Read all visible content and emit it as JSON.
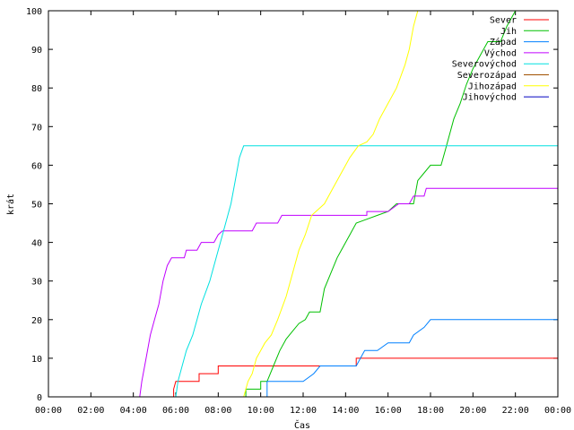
{
  "chart_data": {
    "type": "line",
    "step": true,
    "xlabel": "Čas",
    "ylabel": "krát",
    "xlim": [
      0,
      24
    ],
    "ylim": [
      0,
      100
    ],
    "x_ticks": [
      {
        "v": 0,
        "label": "00:00"
      },
      {
        "v": 2,
        "label": "02:00"
      },
      {
        "v": 4,
        "label": "04:00"
      },
      {
        "v": 6,
        "label": "06:00"
      },
      {
        "v": 8,
        "label": "08:00"
      },
      {
        "v": 10,
        "label": "10:00"
      },
      {
        "v": 12,
        "label": "12:00"
      },
      {
        "v": 14,
        "label": "14:00"
      },
      {
        "v": 16,
        "label": "16:00"
      },
      {
        "v": 18,
        "label": "18:00"
      },
      {
        "v": 20,
        "label": "20:00"
      },
      {
        "v": 22,
        "label": "22:00"
      },
      {
        "v": 24,
        "label": "00:00"
      }
    ],
    "y_ticks": [
      {
        "v": 0,
        "label": "0"
      },
      {
        "v": 10,
        "label": "10"
      },
      {
        "v": 20,
        "label": "20"
      },
      {
        "v": 30,
        "label": "30"
      },
      {
        "v": 40,
        "label": "40"
      },
      {
        "v": 50,
        "label": "50"
      },
      {
        "v": 60,
        "label": "60"
      },
      {
        "v": 70,
        "label": "70"
      },
      {
        "v": 80,
        "label": "80"
      },
      {
        "v": 90,
        "label": "90"
      },
      {
        "v": 100,
        "label": "100"
      }
    ],
    "grid": false,
    "legend_position": "top-right",
    "series": [
      {
        "name": "Sever",
        "color": "#ff0000",
        "points": [
          [
            0,
            0
          ],
          [
            5.9,
            0
          ],
          [
            5.9,
            2
          ],
          [
            6.0,
            4
          ],
          [
            7.1,
            4
          ],
          [
            7.1,
            6
          ],
          [
            8.0,
            6
          ],
          [
            8.0,
            8
          ],
          [
            14.5,
            8
          ],
          [
            14.5,
            10
          ],
          [
            24,
            10
          ]
        ]
      },
      {
        "name": "Jih",
        "color": "#00c000",
        "points": [
          [
            0,
            0
          ],
          [
            9.3,
            0
          ],
          [
            9.3,
            2
          ],
          [
            10.0,
            2
          ],
          [
            10.0,
            4
          ],
          [
            10.3,
            4
          ],
          [
            10.6,
            8
          ],
          [
            10.9,
            12
          ],
          [
            11.2,
            15
          ],
          [
            11.5,
            17
          ],
          [
            11.8,
            19
          ],
          [
            12.1,
            20
          ],
          [
            12.3,
            22
          ],
          [
            12.8,
            22
          ],
          [
            13.0,
            28
          ],
          [
            13.3,
            32
          ],
          [
            13.6,
            36
          ],
          [
            13.9,
            39
          ],
          [
            14.2,
            42
          ],
          [
            14.5,
            45
          ],
          [
            15.0,
            46
          ],
          [
            15.5,
            47
          ],
          [
            16.0,
            48
          ],
          [
            16.4,
            50
          ],
          [
            17.2,
            50
          ],
          [
            17.4,
            56
          ],
          [
            17.7,
            58
          ],
          [
            18.0,
            60
          ],
          [
            18.5,
            60
          ],
          [
            18.7,
            64
          ],
          [
            19.1,
            72
          ],
          [
            19.4,
            76
          ],
          [
            19.7,
            81
          ],
          [
            20.0,
            85
          ],
          [
            20.3,
            88
          ],
          [
            20.7,
            92
          ],
          [
            21.3,
            92
          ],
          [
            21.6,
            96
          ],
          [
            22.0,
            100
          ]
        ]
      },
      {
        "name": "Západ",
        "color": "#0080ff",
        "points": [
          [
            0,
            0
          ],
          [
            10.3,
            0
          ],
          [
            10.3,
            4
          ],
          [
            12.0,
            4
          ],
          [
            12.5,
            6
          ],
          [
            12.8,
            8
          ],
          [
            14.5,
            8
          ],
          [
            14.7,
            10
          ],
          [
            14.9,
            12
          ],
          [
            15.5,
            12
          ],
          [
            16.0,
            14
          ],
          [
            17.0,
            14
          ],
          [
            17.2,
            16
          ],
          [
            17.7,
            18
          ],
          [
            18.0,
            20
          ],
          [
            24,
            20
          ]
        ]
      },
      {
        "name": "Východ",
        "color": "#c000ff",
        "points": [
          [
            0,
            0
          ],
          [
            4.3,
            0
          ],
          [
            4.4,
            4
          ],
          [
            4.6,
            10
          ],
          [
            4.8,
            16
          ],
          [
            5.0,
            20
          ],
          [
            5.2,
            24
          ],
          [
            5.4,
            30
          ],
          [
            5.6,
            34
          ],
          [
            5.8,
            36
          ],
          [
            6.4,
            36
          ],
          [
            6.5,
            38
          ],
          [
            7.0,
            38
          ],
          [
            7.2,
            40
          ],
          [
            7.8,
            40
          ],
          [
            8.0,
            42
          ],
          [
            8.2,
            43
          ],
          [
            9.6,
            43
          ],
          [
            9.8,
            45
          ],
          [
            10.8,
            45
          ],
          [
            11.0,
            47
          ],
          [
            15.0,
            47
          ],
          [
            15.0,
            48
          ],
          [
            16.0,
            48
          ],
          [
            16.5,
            50
          ],
          [
            17.0,
            50
          ],
          [
            17.2,
            52
          ],
          [
            17.7,
            52
          ],
          [
            17.8,
            54
          ],
          [
            24,
            54
          ]
        ]
      },
      {
        "name": "Severovýchod",
        "color": "#00e0e0",
        "points": [
          [
            0,
            0
          ],
          [
            6.0,
            0
          ],
          [
            6.1,
            4
          ],
          [
            6.3,
            8
          ],
          [
            6.5,
            12
          ],
          [
            6.8,
            16
          ],
          [
            7.0,
            20
          ],
          [
            7.2,
            24
          ],
          [
            7.6,
            30
          ],
          [
            7.9,
            36
          ],
          [
            8.2,
            42
          ],
          [
            8.4,
            46
          ],
          [
            8.6,
            50
          ],
          [
            8.8,
            56
          ],
          [
            9.0,
            62
          ],
          [
            9.2,
            65
          ],
          [
            24,
            65
          ]
        ]
      },
      {
        "name": "Severozápad",
        "color": "#a05000",
        "points": [
          [
            0,
            0
          ],
          [
            24,
            0
          ]
        ]
      },
      {
        "name": "Jihozápad",
        "color": "#ffff00",
        "points": [
          [
            0,
            0
          ],
          [
            9.2,
            0
          ],
          [
            9.4,
            4
          ],
          [
            9.6,
            6
          ],
          [
            9.8,
            10
          ],
          [
            10.0,
            12
          ],
          [
            10.2,
            14
          ],
          [
            10.5,
            16
          ],
          [
            10.8,
            20
          ],
          [
            11.2,
            26
          ],
          [
            11.5,
            32
          ],
          [
            11.8,
            38
          ],
          [
            12.1,
            42
          ],
          [
            12.4,
            47
          ],
          [
            12.6,
            48
          ],
          [
            13.0,
            50
          ],
          [
            13.4,
            54
          ],
          [
            13.8,
            58
          ],
          [
            14.2,
            62
          ],
          [
            14.6,
            65
          ],
          [
            15.0,
            66
          ],
          [
            15.3,
            68
          ],
          [
            15.6,
            72
          ],
          [
            16.0,
            76
          ],
          [
            16.4,
            80
          ],
          [
            16.8,
            86
          ],
          [
            17.0,
            90
          ],
          [
            17.2,
            96
          ],
          [
            17.4,
            100
          ]
        ]
      },
      {
        "name": "Jihovýchod",
        "color": "#0000c0",
        "points": [
          [
            0,
            0
          ],
          [
            24,
            0
          ]
        ]
      }
    ]
  }
}
